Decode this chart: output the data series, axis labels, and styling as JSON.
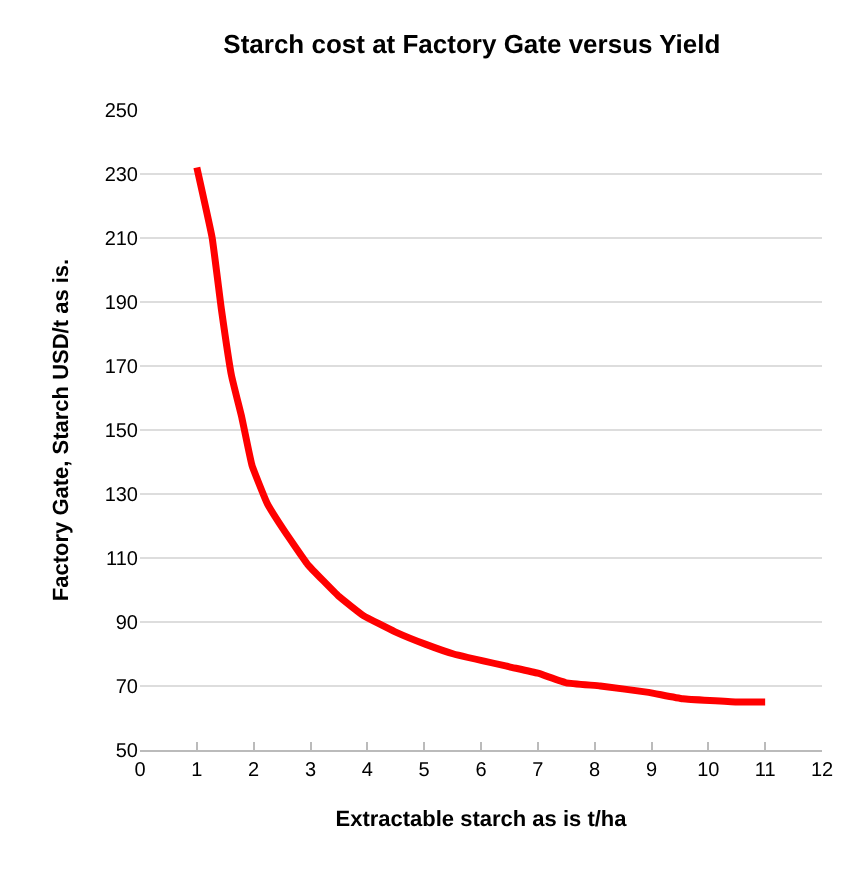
{
  "chart_data": {
    "type": "line",
    "title": "Starch cost at Factory Gate versus Yield",
    "xlabel": "Extractable starch as is t/ha",
    "ylabel": "Factory Gate, Starch USD/t as is.",
    "x": [
      1,
      1.27,
      1.43,
      1.61,
      1.79,
      1.97,
      2.24,
      2.52,
      2.95,
      3.5,
      3.93,
      4.48,
      5.03,
      5.52,
      6.5,
      7,
      7.5,
      8.1,
      8.95,
      9.55,
      10.5,
      11
    ],
    "series": [
      {
        "color": "#ff0000",
        "values": [
          232,
          210,
          188,
          167,
          154,
          139,
          127,
          119,
          108,
          98,
          92,
          87,
          83,
          80,
          76,
          74,
          71,
          70,
          68,
          66,
          65,
          65
        ]
      }
    ],
    "xlim": [
      0,
      12
    ],
    "xticks": [
      0,
      1,
      2,
      3,
      4,
      5,
      6,
      7,
      8,
      9,
      10,
      11,
      12
    ],
    "ylim": [
      50,
      250
    ],
    "yticks": [
      50,
      70,
      90,
      110,
      130,
      150,
      170,
      190,
      210,
      230,
      250
    ],
    "grid": "y",
    "marker": "none",
    "line_style": "solid"
  }
}
